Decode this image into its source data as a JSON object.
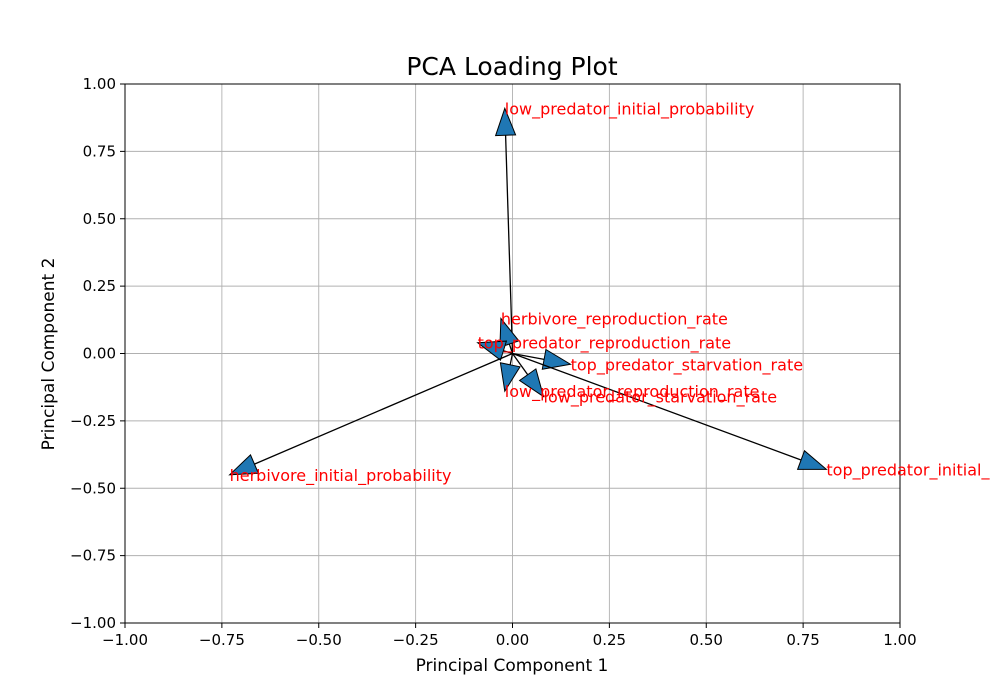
{
  "chart_data": {
    "type": "scatter",
    "subtype": "loading-arrows",
    "title": "PCA Loading Plot",
    "xlabel": "Principal Component 1",
    "ylabel": "Principal Component 2",
    "xlim": [
      -1.0,
      1.0
    ],
    "ylim": [
      -1.0,
      1.0
    ],
    "x_ticks": [
      "−1.00",
      "−0.75",
      "−0.50",
      "−0.25",
      "0.00",
      "0.25",
      "0.50",
      "0.75",
      "1.00"
    ],
    "y_ticks": [
      "1.00",
      "0.75",
      "0.50",
      "0.25",
      "0.00",
      "−0.25",
      "−0.50",
      "−0.75",
      "−1.00"
    ],
    "grid": true,
    "arrow_color": "#1f77b4",
    "label_color": "#ff0000",
    "loadings": [
      {
        "label": "low_predator_initial_probability",
        "x": -0.02,
        "y": 0.91
      },
      {
        "label": "herbivore_reproduction_rate",
        "x": -0.03,
        "y": 0.13
      },
      {
        "label": "top_predator_reproduction_rate",
        "x": -0.09,
        "y": 0.04
      },
      {
        "label": "top_predator_starvation_rate",
        "x": 0.15,
        "y": -0.04
      },
      {
        "label": "low_predator_starvation_rate",
        "x": 0.08,
        "y": -0.16
      },
      {
        "label": "low_predator_reproduction_rate",
        "x": -0.02,
        "y": -0.14
      },
      {
        "label": "herbivore_initial_probability",
        "x": -0.73,
        "y": -0.45
      },
      {
        "label": "top_predator_initial_",
        "x": 0.81,
        "y": -0.43
      }
    ]
  }
}
